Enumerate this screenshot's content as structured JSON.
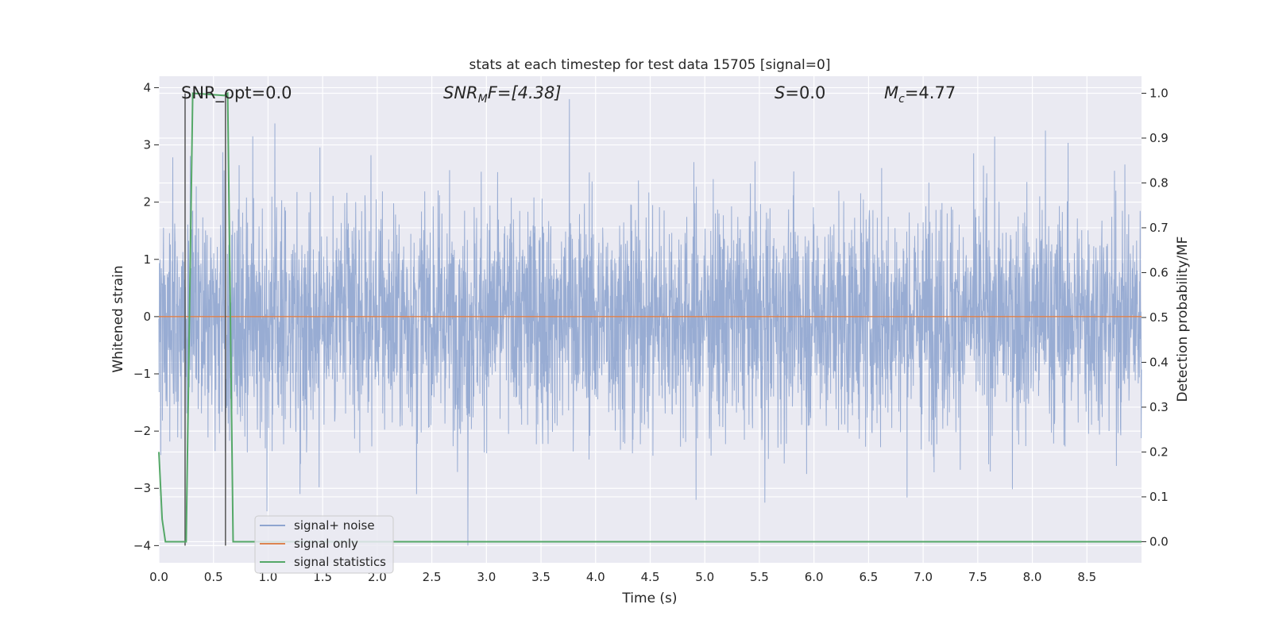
{
  "chart_data": {
    "type": "line",
    "title": "stats at each timestep for test data 15705 [signal=0]",
    "xlabel": "Time (s)",
    "ylabel": "Whitened strain",
    "y2label": "Detection probability/MF",
    "xlim": [
      0.0,
      9.0
    ],
    "ylim": [
      -4.3,
      4.2
    ],
    "y2lim": [
      -0.047,
      1.038
    ],
    "x_ticks": [
      0.0,
      0.5,
      1.0,
      1.5,
      2.0,
      2.5,
      3.0,
      3.5,
      4.0,
      4.5,
      5.0,
      5.5,
      6.0,
      6.5,
      7.0,
      7.5,
      8.0,
      8.5
    ],
    "x_tick_labels": [
      "0.0",
      "0.5",
      "1.0",
      "1.5",
      "2.0",
      "2.5",
      "3.0",
      "3.5",
      "4.0",
      "4.5",
      "5.0",
      "5.5",
      "6.0",
      "6.5",
      "7.0",
      "7.5",
      "8.0",
      "8.5"
    ],
    "y_ticks": [
      4,
      3,
      2,
      1,
      0,
      -1,
      -2,
      -3,
      -4
    ],
    "y_tick_labels": [
      "4",
      "3",
      "2",
      "1",
      "0",
      "−1",
      "−2",
      "−3",
      "−4"
    ],
    "y2_ticks": [
      1.0,
      0.9,
      0.8,
      0.7,
      0.6,
      0.5,
      0.4,
      0.3,
      0.2,
      0.1,
      0.0
    ],
    "y2_tick_labels": [
      "1.0",
      "0.9",
      "0.8",
      "0.7",
      "0.6",
      "0.5",
      "0.4",
      "0.3",
      "0.2",
      "0.1",
      "0.0"
    ],
    "grid": true,
    "legend_position": "lower-left",
    "annotations": {
      "snr_opt": "SNR_opt=0.0",
      "snr_mf_main": "SNR",
      "snr_mf_sub": "M",
      "snr_mf_rest": "F=[4.38]",
      "s_main": "S",
      "s_rest": "=0.0",
      "mc_main": "M",
      "mc_sub": "c",
      "mc_rest": "=4.77"
    },
    "series": [
      {
        "name": "signal+ noise",
        "color": "#8fa5cf",
        "description_note": "whitened strain noise, about 1 sigma",
        "noise_sigma": 1.0,
        "peaks": [
          [
            3.76,
            3.8
          ],
          [
            8.12,
            3.25
          ],
          [
            0.86,
            3.15
          ],
          [
            2.83,
            -4.0
          ],
          [
            0.99,
            -3.4
          ],
          [
            5.55,
            -3.25
          ],
          [
            2.36,
            -3.1
          ],
          [
            4.92,
            -3.2
          ]
        ]
      },
      {
        "name": "signal only",
        "color": "#dd8452",
        "x": [
          0.0,
          9.0
        ],
        "y": [
          0.0,
          0.0
        ]
      },
      {
        "name": "signal statistics",
        "color": "#55a868",
        "axis": "right",
        "x": [
          0.0,
          0.03,
          0.06,
          0.25,
          0.31,
          0.6,
          0.63,
          0.68,
          9.0
        ],
        "y": [
          0.2,
          0.05,
          0.0,
          0.0,
          1.0,
          0.995,
          1.0,
          0.0,
          0.0
        ]
      }
    ],
    "markers": {
      "color": "#555555",
      "x": [
        0.24,
        0.61
      ],
      "y_top": 3.9,
      "y_bottom": -4.0
    }
  }
}
